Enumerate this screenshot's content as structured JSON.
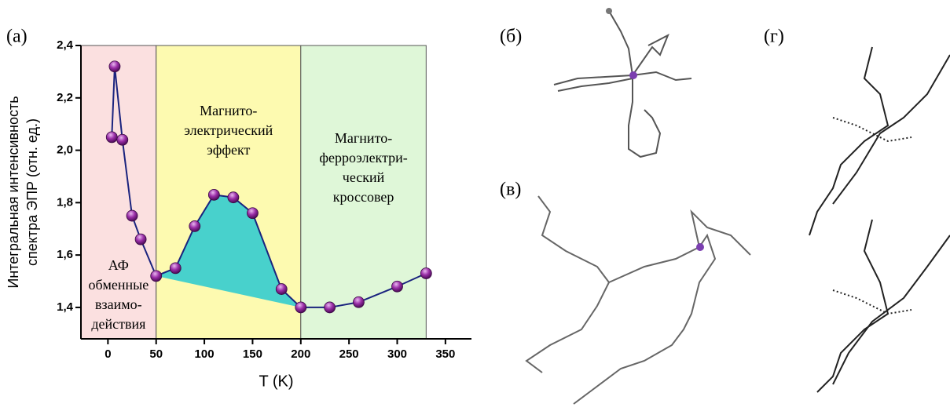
{
  "chart_data": {
    "type": "line",
    "panel_label": "(а)",
    "x_label": "T (K)",
    "y_label": [
      "Интегральная интенсивность",
      "спектра ЭПР (отн. ед.)"
    ],
    "x": [
      4,
      7,
      15,
      25,
      34,
      50,
      70,
      90,
      110,
      130,
      150,
      180,
      200,
      230,
      260,
      300,
      330
    ],
    "series": [
      {
        "color": "#1a237e",
        "values": [
          2.05,
          2.32,
          2.04,
          1.75,
          1.66,
          1.52,
          1.55,
          1.71,
          1.83,
          1.82,
          1.76,
          1.47,
          1.4,
          1.4,
          1.42,
          1.48,
          1.53
        ]
      }
    ],
    "fill_color": "#48d1cc",
    "regions": [
      {
        "from": -28,
        "to": 50,
        "color": "#fbe0e0",
        "label": [
          "АФ",
          "обменные",
          "взаимо-",
          "действия"
        ]
      },
      {
        "from": 50,
        "to": 200,
        "color": "#fdfab0",
        "label": [
          "Магнито-",
          "электрический",
          "эффект"
        ]
      },
      {
        "from": 200,
        "to": 330,
        "color": "#dff7d8",
        "label": [
          "Магнито-",
          "ферроэлектри-",
          "ческий",
          "кроссовер"
        ]
      }
    ],
    "xlim": [
      -28,
      377
    ],
    "ylim": [
      1.28,
      2.4
    ],
    "xticks": [
      0,
      50,
      100,
      150,
      200,
      250,
      300,
      350
    ],
    "yticks": [
      {
        "value": 1.4,
        "label": "1,4"
      },
      {
        "value": 1.6,
        "label": "1,6"
      },
      {
        "value": 1.8,
        "label": "1,8"
      },
      {
        "value": 2.0,
        "label": "2,0"
      },
      {
        "value": 2.2,
        "label": "2,2"
      },
      {
        "value": 2.4,
        "label": "2,4"
      }
    ]
  },
  "panels": {
    "b": "(б)",
    "v": "(в)",
    "g": "(г)"
  }
}
